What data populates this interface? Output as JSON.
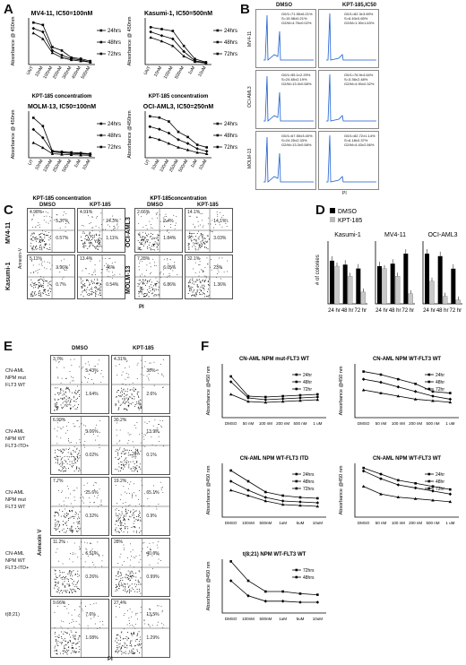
{
  "panels": {
    "A": "A",
    "B": "B",
    "C": "C",
    "D": "D",
    "E": "E",
    "F": "F"
  },
  "panelA": {
    "plots": [
      {
        "title": "MV4-11, IC50=100nM",
        "xlabel": "KPT-185 concentratiom",
        "ylabel": "Absorbance @ 450nm",
        "categories": [
          "UNT",
          "10nM",
          "100nM",
          "200nM",
          "300nM",
          "400nM",
          "500nM"
        ],
        "series": [
          {
            "name": "24hrs",
            "values": [
              0.36,
              0.34,
              0.15,
              0.12,
              0.06,
              0.05,
              0.03
            ]
          },
          {
            "name": "48hrs",
            "values": [
              0.31,
              0.28,
              0.12,
              0.08,
              0.05,
              0.04,
              0.02
            ]
          },
          {
            "name": "72hrs",
            "values": [
              0.27,
              0.22,
              0.1,
              0.06,
              0.04,
              0.03,
              0.02
            ]
          }
        ],
        "ylim": [
          0,
          0.4
        ]
      },
      {
        "title": "Kasumi-1, IC50=500nM",
        "xlabel": "KPT-185 concentratiom",
        "ylabel": "Absorbance @ 450nm",
        "categories": [
          "UNT",
          "10nM",
          "100nM",
          "500nM",
          "1uM",
          "10uM"
        ],
        "series": [
          {
            "name": "24hrs",
            "values": [
              0.8,
              0.76,
              0.72,
              0.4,
              0.12,
              0.05
            ]
          },
          {
            "name": "48hrs",
            "values": [
              0.7,
              0.62,
              0.55,
              0.28,
              0.08,
              0.04
            ]
          },
          {
            "name": "72hrs",
            "values": [
              0.58,
              0.5,
              0.4,
              0.18,
              0.06,
              0.03
            ]
          }
        ],
        "ylim": [
          0,
          1
        ]
      },
      {
        "title": "MOLM-13, IC50=100nM",
        "xlabel": "KPT-185 concentration",
        "ylabel": "Absorbance @ 450nm",
        "categories": [
          "UT",
          "10nM",
          "100nM",
          "250nM",
          "500nM",
          "1uM",
          "10uM"
        ],
        "series": [
          {
            "name": "24hrs",
            "values": [
              1.2,
              0.95,
              0.2,
              0.18,
              0.16,
              0.14,
              0.12
            ]
          },
          {
            "name": "48hrs",
            "values": [
              0.85,
              0.6,
              0.18,
              0.15,
              0.13,
              0.12,
              0.1
            ]
          },
          {
            "name": "72hrs",
            "values": [
              0.45,
              0.3,
              0.12,
              0.1,
              0.09,
              0.08,
              0.07
            ]
          }
        ],
        "ylim": [
          0,
          1.4
        ]
      },
      {
        "title": "OCI-AML3, IC50=250nM",
        "xlabel": "KPT-185concentration",
        "ylabel": "Absorbance @450nm",
        "categories": [
          "UT",
          "10nM",
          "100nM",
          "250nM",
          "500nM",
          "1uM",
          "10uM"
        ],
        "series": [
          {
            "name": "24hrs",
            "values": [
              1.6,
              1.55,
              1.4,
              1.0,
              0.8,
              0.5,
              0.4
            ]
          },
          {
            "name": "48hrs",
            "values": [
              1.2,
              1.1,
              0.95,
              0.7,
              0.55,
              0.35,
              0.25
            ]
          },
          {
            "name": "72hrs",
            "values": [
              0.8,
              0.7,
              0.55,
              0.4,
              0.3,
              0.2,
              0.15
            ]
          }
        ],
        "ylim": [
          0,
          1.8
        ]
      }
    ]
  },
  "panelB": {
    "col_labels": [
      "DMSO",
      "KPT-185,IC50"
    ],
    "row_labels": [
      "MV4-11",
      "OCI-AML3",
      "MOLM-13"
    ],
    "xaxis": "PI",
    "yaxis": "# of cells",
    "stats": [
      [
        "G0/1=71.55±6.21%\nS=15.98±0.21%\nG2/M=4.76±0.02%",
        "G0/1=82.3±3.69%\nS=6.40±0.65%\nG2/M=1.30±1.63%"
      ],
      [
        "G0/1=55.1±2.29%\nS=24.65±2.19%\nG2/M=13.3±0.58%",
        "G0/1=76.9±4.64%\nS=3.36±2.48%\nG2/M=4.90±0.32%"
      ],
      [
        "G0/1=67.55±3.40%\nS=24.25±2.33%\nG2/M=13.3±0.58%",
        "G0/1=82.72±1.14%\nS=6.18±0.37%\nG2/M=4.43±2.56%"
      ]
    ]
  },
  "panelC": {
    "col_labels": [
      "DMSO",
      "KPT-185",
      "DMSO",
      "KPT-185"
    ],
    "row_labels_left": [
      "MV4-11",
      "Kasumi-1"
    ],
    "row_labels_mid": [
      "OCI-AML3",
      "MOLM-13"
    ],
    "yaxis": "Annexin-V",
    "xaxis": "PI",
    "quads": [
      [
        [
          "4.98%",
          "5.37%",
          "0.57%"
        ],
        [
          "4.91%",
          "24.3%",
          "1.11%"
        ],
        [
          "2.66%",
          "2.4%",
          "1.84%"
        ],
        [
          "14.1%",
          "14.1%",
          "3.03%"
        ]
      ],
      [
        [
          "5.11%",
          "3.96%",
          "0.7%"
        ],
        [
          "13.4%",
          "46%",
          "0.54%"
        ],
        [
          "7.28%",
          "6.05%",
          "6.86%"
        ],
        [
          "32.1%",
          "23%",
          "1.36%"
        ]
      ]
    ]
  },
  "panelD": {
    "legend": [
      "DMSO",
      "KPT-185"
    ],
    "ylabel": "# of colonies",
    "plots": [
      {
        "title": "Kasumi-1",
        "categories": [
          "24 hr",
          "48 hr",
          "72 hr"
        ],
        "dmso": [
          55,
          50,
          45
        ],
        "kpt": [
          48,
          35,
          15
        ],
        "ylim": [
          0,
          80
        ]
      },
      {
        "title": "MV4-11",
        "categories": [
          "24 hr",
          "48 hr",
          "72 hr"
        ],
        "dmso": [
          30,
          32,
          40
        ],
        "kpt": [
          28,
          22,
          8
        ],
        "ylim": [
          0,
          50
        ]
      },
      {
        "title": "OCI-AML3",
        "categories": [
          "24 hr",
          "48 hr",
          "72 hr"
        ],
        "dmso": [
          40,
          38,
          28
        ],
        "kpt": [
          18,
          6,
          3
        ],
        "ylim": [
          0,
          50
        ]
      }
    ]
  },
  "panelE": {
    "col_labels": [
      "DMSO",
      "KPT-185"
    ],
    "row_labels": [
      "CN-AML\nNPM mut\nFLT3 WT",
      "CN-AML\nNPM WT\nFLT3-ITD+",
      "CN-AML\nNPM mut\nFLT3 WT",
      "CN-AML\nNPM WT\nFLT3-ITD+",
      "t(8;21)"
    ],
    "yaxis": "Annexin V",
    "xaxis": "PI",
    "quads": [
      [
        [
          "3.7%",
          "5.43%",
          "1.64%"
        ],
        [
          "4.31%",
          "30%",
          "2.6%"
        ]
      ],
      [
        [
          "6.99%",
          "3.06%",
          "0.02%"
        ],
        [
          "30.2%",
          "13.9%",
          "0.1%"
        ]
      ],
      [
        [
          "7.7%",
          "25.6%",
          "0.32%"
        ],
        [
          "19.2%",
          "65.1%",
          "0.9%"
        ]
      ],
      [
        [
          "11.2%",
          "6.51%",
          "0.26%"
        ],
        [
          "28%",
          "40.6%",
          "0.99%"
        ]
      ],
      [
        [
          "9.66%",
          "7.6%",
          "1.08%"
        ],
        [
          "27.4%",
          "13.5%",
          "1.29%"
        ]
      ]
    ]
  },
  "panelF": {
    "ylabel": "Absorbance @450 nm",
    "plots": [
      {
        "title": "CN-AML  NPM mut-FLT3 WT",
        "categories": [
          "DMSO",
          "50 nM",
          "100 nM",
          "200 nM",
          "500 nM",
          "1 uM"
        ],
        "series": [
          {
            "name": "24hr",
            "values": [
              2.3,
              1.2,
              1.15,
              1.2,
              1.25,
              1.3
            ]
          },
          {
            "name": "48hr",
            "values": [
              2.0,
              1.1,
              1.0,
              1.05,
              1.1,
              1.15
            ]
          },
          {
            "name": "72hr",
            "values": [
              1.3,
              0.9,
              0.85,
              0.9,
              0.95,
              1.0
            ]
          }
        ],
        "ylim": [
          0,
          3
        ]
      },
      {
        "title": "CN-AML  NPM WT-FLT3 WT",
        "categories": [
          "DMSO",
          "50 nM",
          "100 nM",
          "200 nM",
          "500 nM",
          "1 uM"
        ],
        "series": [
          {
            "name": "24hr",
            "values": [
              3.0,
              2.8,
              2.5,
              2.2,
              1.7,
              1.6
            ]
          },
          {
            "name": "48hr",
            "values": [
              2.5,
              2.3,
              2.0,
              1.7,
              1.4,
              1.2
            ]
          },
          {
            "name": "72hr",
            "values": [
              1.8,
              1.6,
              1.4,
              1.2,
              1.1,
              1.0
            ]
          }
        ],
        "ylim": [
          0,
          3.5
        ]
      },
      {
        "title": "CN-AML  NPM WT-FLT3 ITD",
        "categories": [
          "DMSO",
          "100nM",
          "500nM",
          "1uM",
          "5uM",
          "10uM"
        ],
        "series": [
          {
            "name": "24hrs",
            "values": [
              2.6,
              2.0,
              1.4,
              1.2,
              1.1,
              1.05
            ]
          },
          {
            "name": "48hrs",
            "values": [
              2.0,
              1.5,
              1.1,
              0.9,
              0.85,
              0.8
            ]
          },
          {
            "name": "72hrs",
            "values": [
              1.5,
              1.2,
              0.9,
              0.7,
              0.65,
              0.6
            ]
          }
        ],
        "ylim": [
          0,
          3
        ]
      },
      {
        "title": "CN-AML  NPM WT-FLT3 WT",
        "categories": [
          "DMSO",
          "50 nM",
          "100 nM",
          "200 nM",
          "500 nM",
          "1 uM"
        ],
        "series": [
          {
            "name": "24hr",
            "values": [
              3.2,
              2.8,
              2.4,
              2.2,
              2.0,
              1.8
            ]
          },
          {
            "name": "48hr",
            "values": [
              3.0,
              2.5,
              2.1,
              1.9,
              1.7,
              1.5
            ]
          },
          {
            "name": "72hr",
            "values": [
              2.0,
              1.5,
              1.3,
              1.2,
              1.1,
              1.0
            ]
          }
        ],
        "ylim": [
          0,
          3.5
        ]
      },
      {
        "title": "t(8;21) NPM WT-FLT3 WT",
        "categories": [
          "DMSO",
          "100nM",
          "500nM",
          "1uM",
          "5uM",
          "10uM"
        ],
        "series": [
          {
            "name": "72hrs",
            "values": [
              4.8,
              3.0,
              2.0,
              2.0,
              1.8,
              1.7
            ]
          },
          {
            "name": "48hrs",
            "values": [
              3.0,
              1.6,
              1.1,
              1.1,
              1.0,
              1.0
            ]
          }
        ],
        "ylim": [
          0,
          5
        ]
      }
    ]
  },
  "chart_data": [
    {
      "type": "line",
      "title": "MV4-11, IC50=100nM"
    },
    {
      "type": "line",
      "title": "Kasumi-1, IC50=500nM"
    },
    {
      "type": "line",
      "title": "MOLM-13, IC50=100nM"
    },
    {
      "type": "line",
      "title": "OCI-AML3, IC50=250nM"
    },
    {
      "type": "bar",
      "title": "Kasumi-1"
    },
    {
      "type": "bar",
      "title": "MV4-11"
    },
    {
      "type": "bar",
      "title": "OCI-AML3"
    },
    {
      "type": "line",
      "title": "CN-AML  NPM mut-FLT3 WT"
    },
    {
      "type": "line",
      "title": "CN-AML  NPM WT-FLT3 WT"
    },
    {
      "type": "line",
      "title": "CN-AML  NPM WT-FLT3 ITD"
    },
    {
      "type": "line",
      "title": "CN-AML  NPM WT-FLT3 WT"
    },
    {
      "type": "line",
      "title": "t(8;21) NPM WT-FLT3 WT"
    }
  ]
}
